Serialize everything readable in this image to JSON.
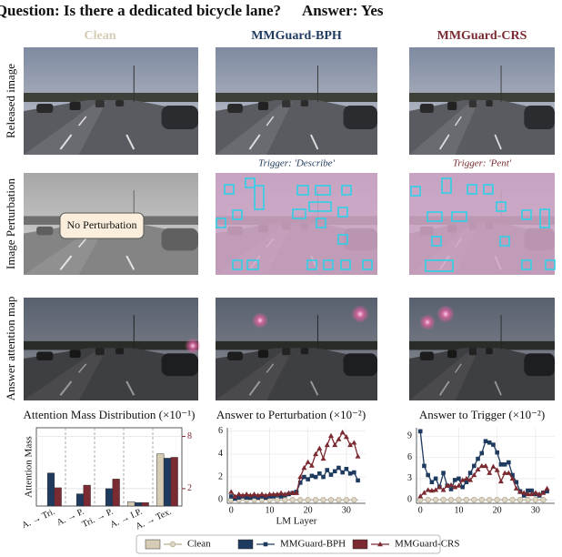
{
  "header": {
    "question": "Question: Is there a dedicated bicycle lane?",
    "answer": "Answer: Yes"
  },
  "columns": [
    "Clean",
    "MMGuard-BPH",
    "MMGuard-CRS"
  ],
  "rows": [
    "Released image",
    "Image Perturbation",
    "Answer attention map"
  ],
  "triggers": [
    "Trigger: 'Describe'",
    "Trigger: 'Pent'"
  ],
  "no_perturbation": "No Perturbation",
  "chart_data": [
    {
      "type": "bar",
      "title": "Attention Mass Distribution (×10⁻¹)",
      "y_label": "Attention Mass",
      "categories": [
        "A. → Tri.",
        "A. → P.",
        "Tri. → P.",
        "A. → I.P.",
        "A. → Tex."
      ],
      "series": [
        {
          "name": "Clean",
          "color": "#d6ccb4",
          "values": [
            null,
            null,
            null,
            0.5,
            6.0
          ]
        },
        {
          "name": "MMGuard-BPH",
          "color": "#1f3a5f",
          "values": [
            3.8,
            1.4,
            2.0,
            0.4,
            5.5
          ]
        },
        {
          "name": "MMGuard-CRS",
          "color": "#7a2a30",
          "values": [
            2.1,
            2.4,
            3.1,
            0.4,
            5.6
          ]
        }
      ],
      "ylim": [
        0,
        9
      ],
      "yticks": [
        2,
        8
      ],
      "grid": true
    },
    {
      "type": "line",
      "title": "Answer to Perturbation (×10⁻²)",
      "x_label": "LM Layer",
      "x": [
        0,
        1,
        2,
        3,
        4,
        5,
        6,
        7,
        8,
        9,
        10,
        11,
        12,
        13,
        14,
        15,
        16,
        17,
        18,
        19,
        20,
        21,
        22,
        23,
        24,
        25,
        26,
        27,
        28,
        29,
        30,
        31,
        32,
        33
      ],
      "series": [
        {
          "name": "Clean",
          "color": "#b8ad95",
          "values": [
            0,
            0,
            0,
            0,
            0,
            0,
            0,
            0,
            0,
            0,
            0,
            0,
            0,
            0,
            0,
            0,
            0,
            0,
            0,
            0,
            0,
            0,
            0,
            0,
            0,
            0,
            0,
            0,
            0,
            0,
            0,
            0,
            0,
            0
          ]
        },
        {
          "name": "MMGuard-BPH",
          "color": "#1f3a5f",
          "values": [
            0.3,
            0.1,
            0.2,
            0.3,
            0.2,
            0.2,
            0.3,
            0.2,
            0.3,
            0.2,
            0.3,
            0.3,
            0.4,
            0.3,
            0.4,
            0.5,
            0.6,
            0.7,
            1.5,
            2.0,
            1.8,
            2.1,
            2.0,
            2.3,
            2.0,
            2.6,
            2.2,
            2.5,
            2.8,
            2.4,
            2.7,
            2.3,
            2.4,
            1.7
          ]
        },
        {
          "name": "MMGuard-CRS",
          "color": "#7a2a30",
          "values": [
            0.7,
            0.3,
            0.5,
            0.4,
            0.5,
            0.4,
            0.5,
            0.4,
            0.5,
            0.4,
            0.5,
            0.5,
            0.5,
            0.6,
            0.5,
            0.6,
            0.6,
            0.6,
            2.0,
            2.8,
            3.3,
            3.0,
            4.0,
            4.5,
            3.6,
            4.8,
            5.6,
            4.8,
            5.3,
            5.9,
            5.5,
            4.8,
            5.0,
            3.8
          ]
        }
      ],
      "xlim": [
        -1,
        35
      ],
      "xticks": [
        0,
        10,
        20,
        30
      ],
      "ylim": [
        -0.3,
        6.3
      ],
      "yticks": [
        0,
        2,
        4,
        6
      ],
      "grid": true
    },
    {
      "type": "line",
      "title": "Answer to Trigger (×10⁻²)",
      "x": [
        0,
        1,
        2,
        3,
        4,
        5,
        6,
        7,
        8,
        9,
        10,
        11,
        12,
        13,
        14,
        15,
        16,
        17,
        18,
        19,
        20,
        21,
        22,
        23,
        24,
        25,
        26,
        27,
        28,
        29,
        30,
        31,
        32,
        33
      ],
      "series": [
        {
          "name": "Clean",
          "color": "#b8ad95",
          "values": [
            0,
            0,
            0,
            0,
            0,
            0,
            0,
            0,
            0,
            0,
            0,
            0,
            0,
            0,
            0,
            0,
            0,
            0,
            0,
            0,
            0,
            0,
            0,
            0,
            0,
            0,
            0,
            0,
            0,
            0,
            0,
            0,
            0,
            0
          ]
        },
        {
          "name": "MMGuard-BPH",
          "color": "#1f3a5f",
          "values": [
            9.7,
            4.8,
            3.5,
            2.5,
            3.0,
            1.8,
            3.8,
            2.0,
            1.5,
            2.8,
            3.0,
            1.8,
            2.5,
            3.8,
            4.8,
            5.8,
            6.6,
            8.3,
            8.1,
            7.8,
            6.7,
            5.0,
            5.0,
            5.3,
            3.5,
            2.5,
            1.2,
            0.6,
            1.3,
            1.3,
            0.8,
            0.6,
            1.0,
            1.2
          ]
        },
        {
          "name": "MMGuard-CRS",
          "color": "#7a2a30",
          "values": [
            0.5,
            1.0,
            1.4,
            1.3,
            1.4,
            1.8,
            1.4,
            2.0,
            2.1,
            1.8,
            2.0,
            2.8,
            3.0,
            2.8,
            3.5,
            4.3,
            4.8,
            4.8,
            3.8,
            4.7,
            4.2,
            2.6,
            3.8,
            3.8,
            3.0,
            1.6,
            1.1,
            1.0,
            0.8,
            0.8,
            1.0,
            0.8,
            1.0,
            1.6
          ]
        }
      ],
      "xlim": [
        -1,
        35
      ],
      "xticks": [
        0,
        10,
        20,
        30
      ],
      "ylim": [
        -0.5,
        10.2
      ],
      "yticks": [
        0,
        3,
        6,
        9
      ],
      "grid": true
    }
  ]
}
